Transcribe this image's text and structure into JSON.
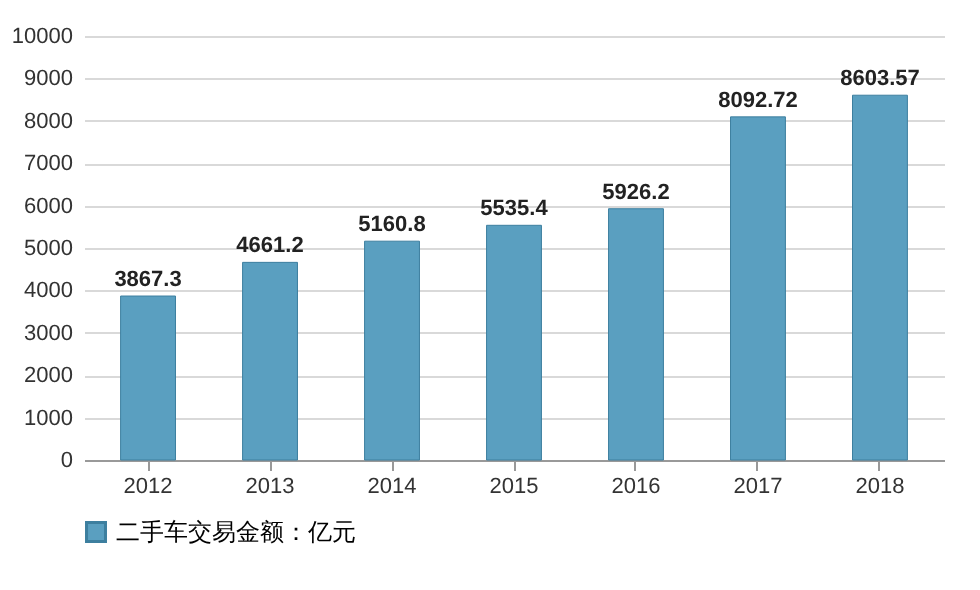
{
  "chart_data": {
    "type": "bar",
    "categories": [
      "2012",
      "2013",
      "2014",
      "2015",
      "2016",
      "2017",
      "2018"
    ],
    "series": [
      {
        "name": "二手车交易金额：亿元",
        "color": "#5a9fc0",
        "values": [
          3867.3,
          4661.2,
          5160.8,
          5535.4,
          5926.2,
          8092.72,
          8603.57
        ]
      }
    ],
    "ylim": [
      0,
      10000
    ],
    "yticks": [
      0,
      1000,
      2000,
      3000,
      4000,
      5000,
      6000,
      7000,
      8000,
      9000,
      10000
    ],
    "grid": "y",
    "legend": "bottom",
    "data_labels": true
  }
}
